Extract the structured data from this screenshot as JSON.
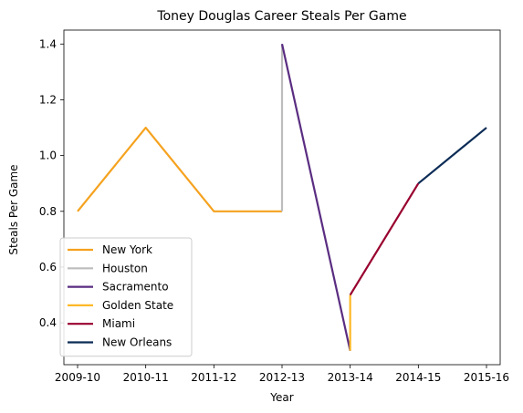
{
  "chart_data": {
    "type": "line",
    "title": "Toney Douglas Career Steals Per Game",
    "xlabel": "Year",
    "ylabel": "Steals Per Game",
    "categories": [
      "2009-10",
      "2010-11",
      "2011-12",
      "2012-13",
      "2013-14",
      "2014-15",
      "2015-16"
    ],
    "ylim": [
      0.25,
      1.45
    ],
    "y_ticks": [
      "0.4",
      "0.6",
      "0.8",
      "1.0",
      "1.2",
      "1.4"
    ],
    "grid": false,
    "legend_position": "lower-left",
    "series": [
      {
        "name": "New York",
        "color": "#F5A21E",
        "points": [
          [
            "2009-10",
            0.8
          ],
          [
            "2010-11",
            1.1
          ],
          [
            "2011-12",
            0.8
          ],
          [
            "2012-13",
            0.8
          ]
        ]
      },
      {
        "name": "Houston",
        "color": "#BDBDBD",
        "points": [
          [
            "2012-13",
            0.8
          ],
          [
            "2012-13",
            1.4
          ]
        ]
      },
      {
        "name": "Sacramento",
        "color": "#5A2D81",
        "points": [
          [
            "2012-13",
            1.4
          ],
          [
            "2013-14",
            0.3
          ]
        ]
      },
      {
        "name": "Golden State",
        "color": "#FDB927",
        "points": [
          [
            "2013-14",
            0.3
          ],
          [
            "2013-14",
            0.5
          ]
        ]
      },
      {
        "name": "Miami",
        "color": "#98002E",
        "points": [
          [
            "2013-14",
            0.5
          ],
          [
            "2014-15",
            0.9
          ]
        ]
      },
      {
        "name": "New Orleans",
        "color": "#0C2C56",
        "points": [
          [
            "2014-15",
            0.9
          ],
          [
            "2015-16",
            1.1
          ]
        ]
      }
    ]
  }
}
